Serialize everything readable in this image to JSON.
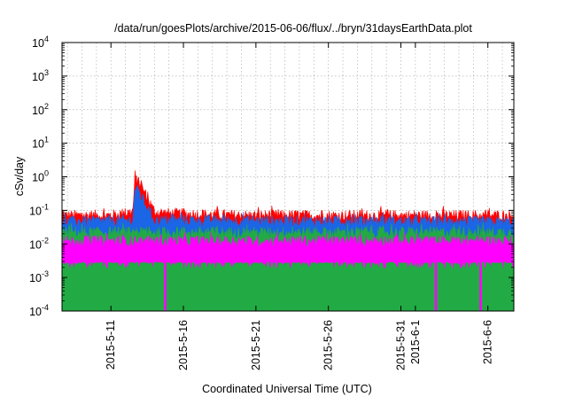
{
  "chart_data": {
    "type": "area",
    "title": "/data/run/goesPlots/archive/2015-06-06/flux/../bryn/31daysEarthData.plot",
    "xlabel": "Coordinated Universal Time (UTC)",
    "ylabel": "cSv/day",
    "y_scale": "log",
    "ylim": [
      0.0001,
      10000
    ],
    "y_ticks": [
      {
        "base": "10",
        "exp": "-4"
      },
      {
        "base": "10",
        "exp": "-3"
      },
      {
        "base": "10",
        "exp": "-2"
      },
      {
        "base": "10",
        "exp": "-1"
      },
      {
        "base": "10",
        "exp": "0"
      },
      {
        "base": "10",
        "exp": "1"
      },
      {
        "base": "10",
        "exp": "2"
      },
      {
        "base": "10",
        "exp": "3"
      },
      {
        "base": "10",
        "exp": "4"
      }
    ],
    "xlim": [
      "2015-05-07T15:00",
      "2015-06-07T19:00"
    ],
    "x_ticks": [
      "2015-5-11",
      "2015-5-16",
      "2015-5-21",
      "2015-5-26",
      "2015-5-31",
      "2015-6-1",
      "2015-6-6"
    ],
    "grid": true,
    "series": [
      {
        "color": "#ff0000",
        "baseline": 0.065,
        "points": [
          [
            "2015-05-07",
            0.07
          ],
          [
            "2015-05-11",
            0.07
          ],
          [
            "2015-05-12T12:00",
            0.09
          ],
          [
            "2015-05-12T16:00",
            0.9
          ],
          [
            "2015-05-13T00:00",
            0.6
          ],
          [
            "2015-05-13T12:00",
            0.25
          ],
          [
            "2015-05-14T00:00",
            0.09
          ],
          [
            "2015-05-15",
            0.08
          ],
          [
            "2015-05-20",
            0.07
          ],
          [
            "2015-06-07",
            0.07
          ]
        ]
      },
      {
        "color": "#1a66e6",
        "baseline": 0.045,
        "points": [
          [
            "2015-05-07",
            0.045
          ],
          [
            "2015-05-12T12:00",
            0.05
          ],
          [
            "2015-05-12T16:00",
            0.5
          ],
          [
            "2015-05-13T00:00",
            0.3
          ],
          [
            "2015-05-13T12:00",
            0.12
          ],
          [
            "2015-05-14T00:00",
            0.05
          ],
          [
            "2015-06-07",
            0.045
          ]
        ]
      },
      {
        "color": "#22aa44",
        "baseline": 0.022,
        "points": [
          [
            "2015-05-07",
            0.022
          ],
          [
            "2015-06-07",
            0.022
          ]
        ]
      },
      {
        "color": "#ff00ff",
        "baseline": 0.012,
        "lower": 0.003,
        "dips": [
          "2015-05-14T18:00",
          "2015-06-02T10:00",
          "2015-06-05T12:00"
        ],
        "points": [
          [
            "2015-05-07",
            0.012
          ],
          [
            "2015-06-07",
            0.012
          ]
        ]
      }
    ]
  }
}
